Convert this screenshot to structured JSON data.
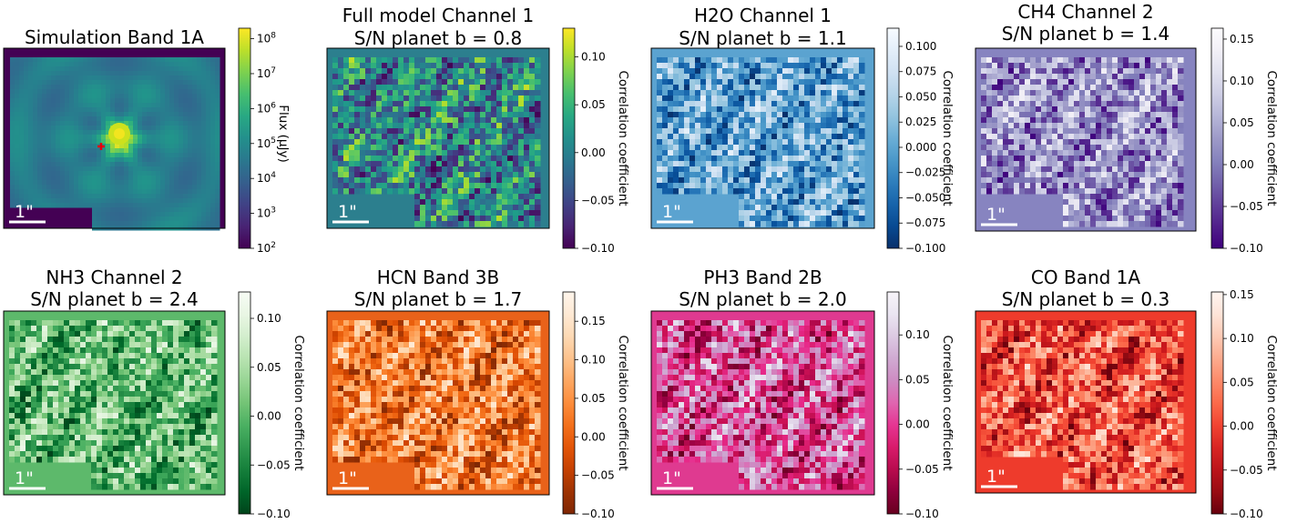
{
  "chart_data": [
    {
      "type": "heatmap",
      "title": [
        "Simulation Band 1A"
      ],
      "colormap": "viridis",
      "colorbar": {
        "scale": "log",
        "label": "Flux (μJy)",
        "range": [
          100,
          200000000
        ],
        "ticks": [
          {
            "value": 100,
            "base": "10",
            "exp": "2"
          },
          {
            "value": 1000,
            "base": "10",
            "exp": "3"
          },
          {
            "value": 10000,
            "base": "10",
            "exp": "4"
          },
          {
            "value": 100000,
            "base": "10",
            "exp": "5"
          },
          {
            "value": 1000000,
            "base": "10",
            "exp": "6"
          },
          {
            "value": 10000000,
            "base": "10",
            "exp": "7"
          },
          {
            "value": 100000000,
            "base": "10",
            "exp": "8"
          }
        ]
      },
      "scalebar_label": "1\"",
      "marker": "red plus at star position",
      "background": "#440154"
    },
    {
      "type": "heatmap",
      "title": [
        "Full model Channel 1",
        "S/N planet b = 0.8"
      ],
      "colormap": "viridis",
      "colorbar": {
        "label": "Correlation coefficient",
        "range": [
          -0.1,
          0.13
        ],
        "ticks": [
          {
            "value": -0.1,
            "label": "−0.10"
          },
          {
            "value": -0.05,
            "label": "−0.05"
          },
          {
            "value": 0,
            "label": "0.00"
          },
          {
            "value": 0.05,
            "label": "0.05"
          },
          {
            "value": 0.1,
            "label": "0.10"
          }
        ]
      },
      "scalebar_label": "1\"",
      "background": "#2c7f8e"
    },
    {
      "type": "heatmap",
      "title": [
        "H2O Channel 1",
        "S/N planet b = 1.1"
      ],
      "colormap": "blues_r",
      "colorbar": {
        "label": "Correlation coefficient",
        "range": [
          -0.1,
          0.118
        ],
        "ticks": [
          {
            "value": -0.1,
            "label": "−0.100"
          },
          {
            "value": -0.075,
            "label": "−0.075"
          },
          {
            "value": -0.05,
            "label": "−0.050"
          },
          {
            "value": -0.025,
            "label": "−0.025"
          },
          {
            "value": 0,
            "label": "0.000"
          },
          {
            "value": 0.025,
            "label": "0.025"
          },
          {
            "value": 0.05,
            "label": "0.050"
          },
          {
            "value": 0.075,
            "label": "0.075"
          },
          {
            "value": 0.1,
            "label": "0.100"
          }
        ]
      },
      "scalebar_label": "1\"",
      "background": "#5ba3d0"
    },
    {
      "type": "heatmap",
      "title": [
        "CH4 Channel 2",
        "S/N planet b = 1.4"
      ],
      "colormap": "purples_r",
      "colorbar": {
        "label": "Correlation coefficient",
        "range": [
          -0.1,
          0.163
        ],
        "ticks": [
          {
            "value": -0.1,
            "label": "−0.10"
          },
          {
            "value": -0.05,
            "label": "−0.05"
          },
          {
            "value": 0,
            "label": "0.00"
          },
          {
            "value": 0.05,
            "label": "0.05"
          },
          {
            "value": 0.1,
            "label": "0.10"
          },
          {
            "value": 0.15,
            "label": "0.15"
          }
        ]
      },
      "scalebar_label": "1\"",
      "background": "#8784c0"
    },
    {
      "type": "heatmap",
      "title": [
        "NH3 Channel 2",
        "S/N planet b = 2.4"
      ],
      "colormap": "greens_r",
      "colorbar": {
        "label": "Correlation coefficient",
        "range": [
          -0.1,
          0.127
        ],
        "ticks": [
          {
            "value": -0.1,
            "label": "−0.10"
          },
          {
            "value": -0.05,
            "label": "−0.05"
          },
          {
            "value": 0,
            "label": "0.00"
          },
          {
            "value": 0.05,
            "label": "0.05"
          },
          {
            "value": 0.1,
            "label": "0.10"
          }
        ]
      },
      "scalebar_label": "1\"",
      "background": "#5db96b"
    },
    {
      "type": "heatmap",
      "title": [
        "HCN Band 3B",
        "S/N planet b = 1.7"
      ],
      "colormap": "oranges_r",
      "colorbar": {
        "label": "Correlation coefficient",
        "range": [
          -0.1,
          0.188
        ],
        "ticks": [
          {
            "value": -0.1,
            "label": "−0.10"
          },
          {
            "value": -0.05,
            "label": "−0.05"
          },
          {
            "value": 0,
            "label": "0.00"
          },
          {
            "value": 0.05,
            "label": "0.05"
          },
          {
            "value": 0.1,
            "label": "0.10"
          },
          {
            "value": 0.15,
            "label": "0.15"
          }
        ]
      },
      "scalebar_label": "1\"",
      "background": "#e9621a"
    },
    {
      "type": "heatmap",
      "title": [
        "PH3 Band 2B",
        "S/N planet b = 2.0"
      ],
      "colormap": "purd_r",
      "colorbar": {
        "label": "Correlation coefficient",
        "range": [
          -0.1,
          0.148
        ],
        "ticks": [
          {
            "value": -0.1,
            "label": "−0.10"
          },
          {
            "value": -0.05,
            "label": "−0.05"
          },
          {
            "value": 0,
            "label": "0.00"
          },
          {
            "value": 0.05,
            "label": "0.05"
          },
          {
            "value": 0.1,
            "label": "0.10"
          }
        ]
      },
      "scalebar_label": "1\"",
      "background": "#df3a90"
    },
    {
      "type": "heatmap",
      "title": [
        "CO Band 1A",
        "S/N planet b = 0.3"
      ],
      "colormap": "reds_r",
      "colorbar": {
        "label": "Correlation coefficient",
        "range": [
          -0.1,
          0.153
        ],
        "ticks": [
          {
            "value": -0.1,
            "label": "−0.10"
          },
          {
            "value": -0.05,
            "label": "−0.05"
          },
          {
            "value": 0,
            "label": "0.00"
          },
          {
            "value": 0.05,
            "label": "0.05"
          },
          {
            "value": 0.1,
            "label": "0.10"
          },
          {
            "value": 0.15,
            "label": "0.15"
          }
        ]
      },
      "scalebar_label": "1\"",
      "background": "#ee3b2c"
    }
  ]
}
